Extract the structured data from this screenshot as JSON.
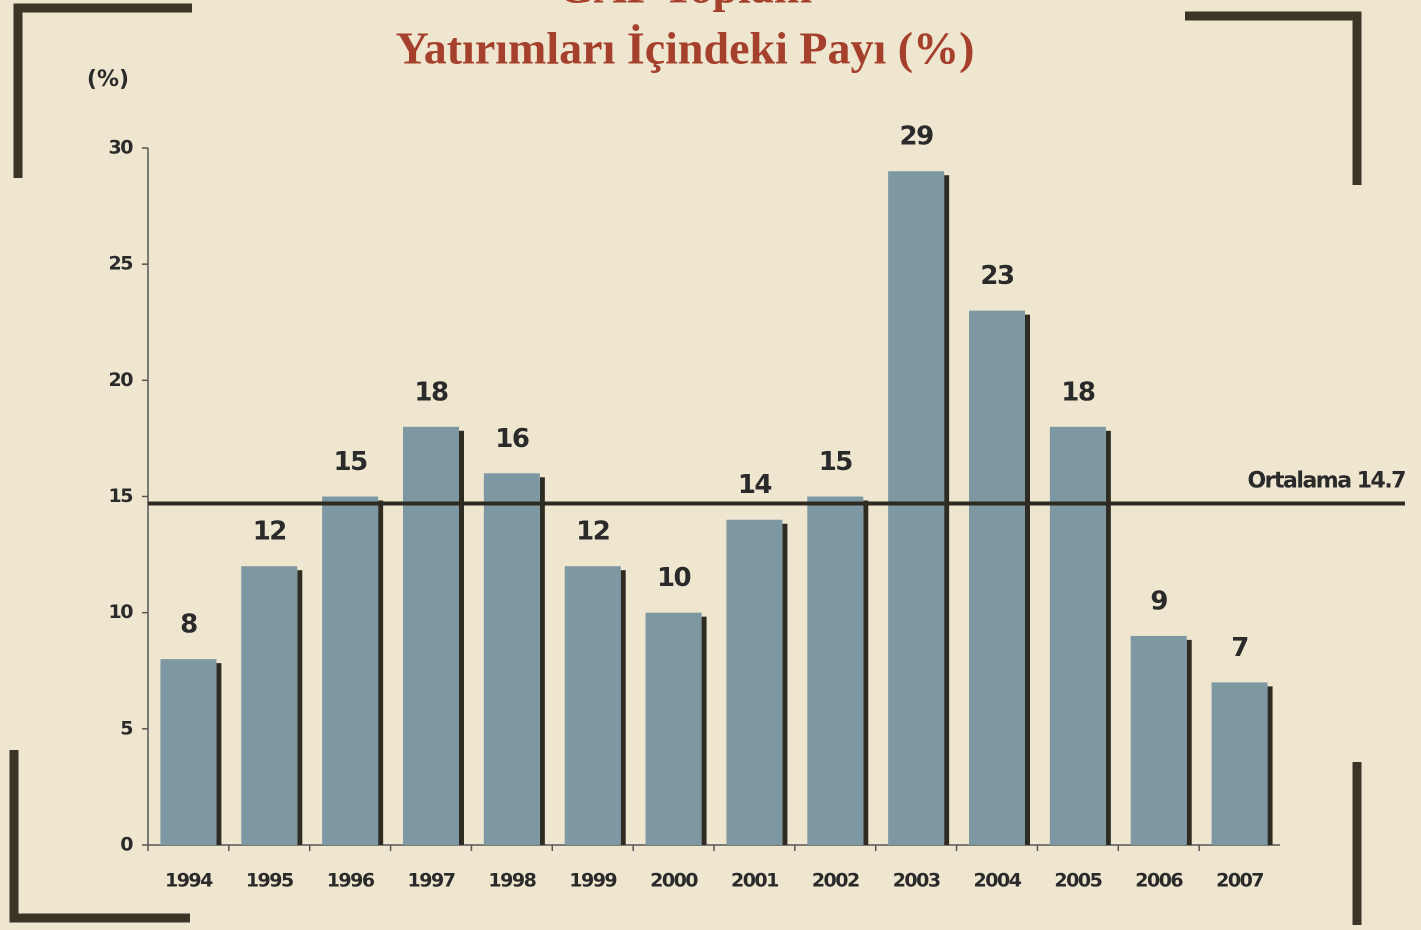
{
  "chart_data": {
    "type": "bar",
    "title": [
      "GAP Toplam",
      "Yatırımları İçindeki Payı (%)"
    ],
    "y_label": "(%)",
    "categories": [
      "1994",
      "1995",
      "1996",
      "1997",
      "1998",
      "1999",
      "2000",
      "2001",
      "2002",
      "2003",
      "2004",
      "2005",
      "2006",
      "2007"
    ],
    "values": [
      8,
      12,
      15,
      18,
      16,
      12,
      10,
      14,
      15,
      29,
      23,
      18,
      9,
      7
    ],
    "color": "#7d98a3",
    "ylim": [
      0,
      30
    ],
    "yticks": [
      0,
      5,
      10,
      15,
      20,
      25,
      30
    ],
    "annotation": {
      "label": "Ortalama 14.7",
      "value": 14.7
    }
  }
}
